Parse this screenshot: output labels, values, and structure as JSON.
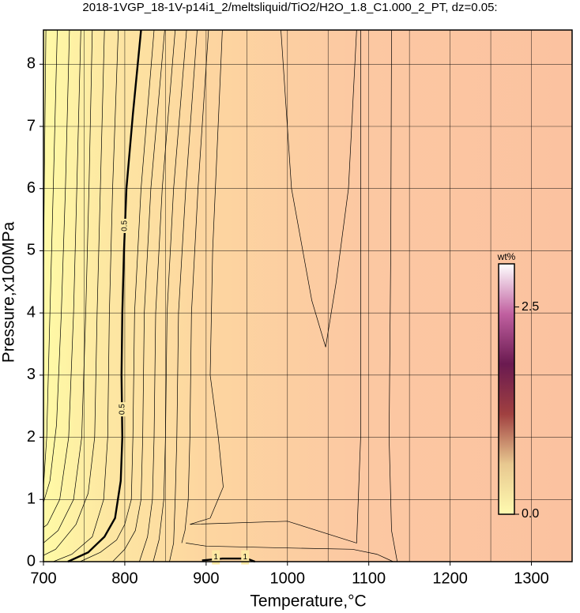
{
  "chart_data": {
    "type": "contour",
    "title": "2018-1VGP_18-1V-p14i1_2/meltsliquid/TiO2/H2O_1.8_C1.000_2_PT, dz=0.05:",
    "x_label": "Temperature,°C",
    "y_label": "Pressure,x100MPa",
    "xlim": [
      700,
      1350
    ],
    "ylim": [
      0,
      8.55
    ],
    "xticks": [
      700,
      800,
      900,
      1000,
      1100,
      1200,
      1300
    ],
    "yticks": [
      0,
      1,
      2,
      3,
      4,
      5,
      6,
      7,
      8
    ],
    "xgrid": [
      750,
      850,
      950,
      1050,
      1150,
      1250
    ],
    "grid": true,
    "contours": [
      {
        "x": [
          703,
          701,
          700
        ],
        "y": [
          8.55,
          6,
          4.5
        ]
      },
      {
        "x": [
          717,
          712,
          708,
          704,
          700
        ],
        "y": [
          8.55,
          6,
          4,
          2,
          1.2
        ]
      },
      {
        "x": [
          732,
          727,
          722,
          716,
          708,
          700
        ],
        "y": [
          8.55,
          6,
          4,
          2.2,
          1.3,
          0.95
        ]
      },
      {
        "x": [
          746,
          741,
          737,
          731,
          720,
          705,
          700
        ],
        "y": [
          8.55,
          6,
          4,
          2,
          1,
          0.6,
          0.55
        ]
      },
      {
        "x": [
          760,
          756,
          752,
          747,
          737,
          718,
          700
        ],
        "y": [
          8.55,
          6,
          4,
          2,
          1,
          0.5,
          0.3
        ]
      },
      {
        "x": [
          775,
          770,
          766,
          763,
          755,
          740,
          715,
          700
        ],
        "y": [
          8.55,
          6,
          4,
          2,
          1.1,
          0.6,
          0.2,
          0.1
        ]
      },
      {
        "x": [
          792,
          785,
          781,
          779,
          774,
          760,
          735,
          712
        ],
        "y": [
          8.55,
          6,
          4,
          2,
          1,
          0.4,
          0.12,
          0
        ]
      },
      {
        "bold": true,
        "x": [
          820,
          810,
          802,
          799,
          797,
          796,
          797,
          795,
          788,
          775,
          755,
          730
        ],
        "y": [
          8.55,
          7.2,
          6,
          5,
          4,
          3,
          2,
          1.3,
          0.7,
          0.4,
          0.15,
          0
        ],
        "labels": [
          {
            "x": 800,
            "y": 5.4,
            "text": 0.5
          },
          {
            "x": 797,
            "y": 2.45,
            "text": 0.5
          }
        ]
      },
      {
        "x": [
          836,
          820,
          812,
          810,
          808,
          800,
          790,
          770,
          745
        ],
        "y": [
          8.55,
          6,
          4,
          2,
          1,
          0.6,
          0.35,
          0.15,
          0
        ]
      },
      {
        "x": [
          849,
          832,
          824,
          822,
          820,
          813,
          800,
          785
        ],
        "y": [
          8.55,
          6,
          4,
          2,
          1,
          0.5,
          0.2,
          0
        ]
      },
      {
        "x": [
          862,
          846,
          838,
          836,
          834,
          828,
          818
        ],
        "y": [
          8.55,
          6,
          4,
          2,
          1,
          0.4,
          0
        ]
      },
      {
        "x": [
          876,
          860,
          852,
          850,
          848,
          842,
          835
        ],
        "y": [
          8.55,
          6,
          4,
          2,
          1,
          0.35,
          0
        ]
      },
      {
        "x": [
          889,
          875,
          866,
          864,
          862,
          860,
          855
        ],
        "y": [
          8.55,
          6,
          4,
          2,
          1,
          0.3,
          0
        ]
      },
      {
        "x": [
          903,
          890,
          882,
          880,
          878,
          874,
          870
        ],
        "y": [
          8.55,
          6,
          4,
          2,
          1,
          0.5,
          0.3
        ]
      },
      {
        "x": [
          920,
          908,
          905,
          915,
          921,
          905,
          880,
          1000,
          1085,
          1090,
          1090
        ],
        "y": [
          8.55,
          5,
          3,
          2,
          1.2,
          0.7,
          0.6,
          0.65,
          0.3,
          2,
          8.55
        ]
      },
      {
        "x": [
          992,
          1005,
          1030,
          1047,
          1060,
          1075,
          1085
        ],
        "y": [
          8.55,
          6,
          4.2,
          3.45,
          4.5,
          6,
          8.55
        ]
      },
      {
        "x": [
          1128,
          1127,
          1125,
          1128,
          1135
        ],
        "y": [
          8.55,
          5,
          2,
          0.5,
          0
        ]
      },
      {
        "x": [
          875,
          900,
          1000,
          1080,
          1110,
          1130
        ],
        "y": [
          0.3,
          0.25,
          0.22,
          0.2,
          0.12,
          0
        ]
      },
      {
        "bold": true,
        "x": [
          895,
          920,
          950,
          960
        ],
        "y": [
          0.02,
          0.05,
          0.05,
          0
        ],
        "labels": [
          {
            "x": 912,
            "y": 0.07,
            "text": 1
          },
          {
            "x": 948,
            "y": 0.07,
            "text": 1
          }
        ]
      }
    ],
    "colorbar": {
      "title": "wt%",
      "lim": [
        0,
        3.02
      ],
      "ticks": [
        {
          "value": 0,
          "label": "0.0"
        },
        {
          "value": 2.5,
          "label": "2.5"
        }
      ],
      "colors": [
        "#fffbb0",
        "#e8c890",
        "#a04040",
        "#6a1a50",
        "#c060a0",
        "#ffffff"
      ]
    }
  }
}
